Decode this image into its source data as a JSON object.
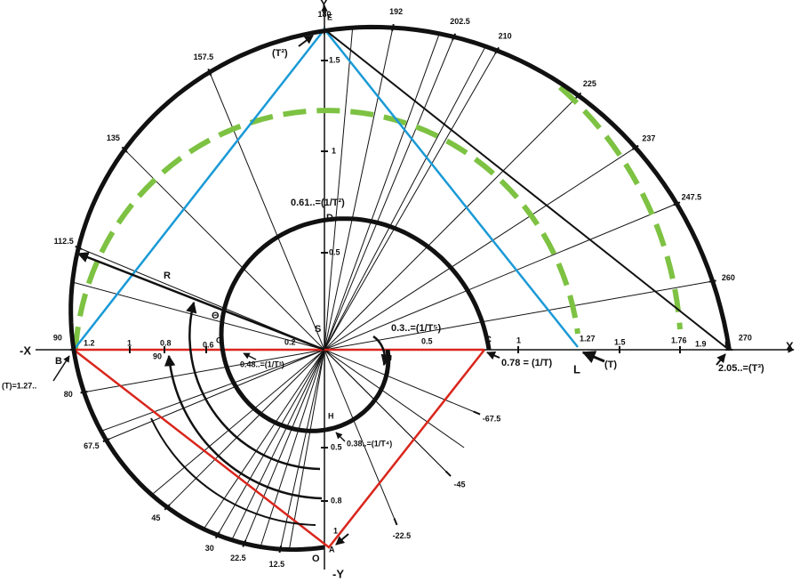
{
  "axes": {
    "y": "Y",
    "neg_y": "-Y",
    "x": "X",
    "neg_x": "-X"
  },
  "points": {
    "e": "E",
    "d": "D",
    "s": "S",
    "c": "C",
    "f": "F",
    "j": "J",
    "l": "L",
    "g": "G",
    "b": "B",
    "h": "H",
    "o": "O",
    "a": "A",
    "r": "R",
    "theta": "Θ"
  },
  "angle_labels": [
    "180",
    "192",
    "202.5",
    "210",
    "225",
    "237",
    "247.5",
    "260",
    "270",
    "157.5",
    "135",
    "112.5",
    "90",
    "80",
    "67.5",
    "45",
    "30",
    "22.5",
    "12.5",
    "-22.5",
    "-45",
    "-67.5"
  ],
  "y_scale": [
    "1.5",
    "1",
    "0.5",
    "0.5",
    "0.8",
    "1"
  ],
  "x_scale": [
    "0.2",
    "0.5",
    "1",
    "1.27",
    "1.5",
    "1.76",
    "1.9",
    "1.2",
    "1",
    "0.8",
    "0.6",
    "90"
  ],
  "annotations": {
    "t2": "(T²)",
    "inv_t2": "0.61..=(1/T²)",
    "inv_t5": "0.3..=(1/T⁵)",
    "inv_t": "0.78 = (1/T)",
    "t": "(T)",
    "t3": "2.05..=(T³)",
    "t_value": "(T)=1.27..",
    "inv_t3": "0.48..=(1/T³)",
    "inv_t4": "0.38..=(1/T⁴)"
  }
}
